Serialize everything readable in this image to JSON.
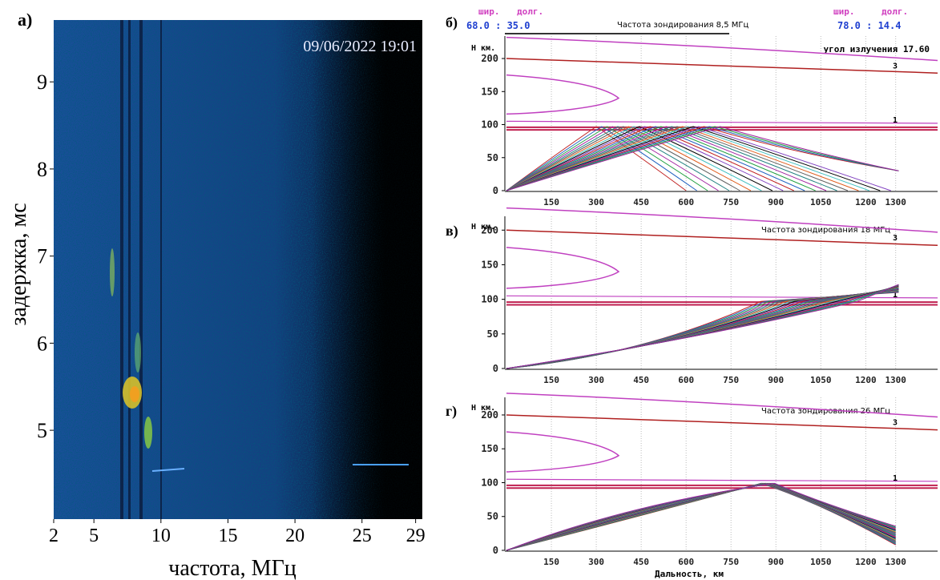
{
  "panel_a": {
    "label": "а)",
    "timestamp": "09/06/2022 19:01",
    "y_label": "задержка, мс",
    "x_label": "частота, МГц",
    "xlim": [
      2,
      29.5
    ],
    "ylim": [
      3.98,
      9.71
    ],
    "xticks": [
      2,
      5,
      10,
      15,
      20,
      25,
      29
    ],
    "yticks": [
      5,
      6,
      7,
      8,
      9
    ]
  },
  "header": {
    "lat_label_1": "шир.",
    "lon_label_1": "долг.",
    "coords_1": "68.0 :  35.0",
    "lat_label_2": "шир.",
    "lon_label_2": "долг.",
    "coords_2": "78.0 :  14.4"
  },
  "panels": [
    {
      "label": "б)",
      "y_unit": "Н км.",
      "title": "Частота зондирования 8,5 МГц",
      "note": "угол излучения 17.60",
      "layer_labels": [
        "3",
        "1"
      ],
      "xlim": [
        0,
        1440
      ],
      "ylim": [
        0,
        234
      ],
      "xticks": [
        150,
        300,
        450,
        600,
        750,
        900,
        1050,
        1200,
        1300
      ],
      "yticks": [
        0,
        50,
        100,
        150,
        200
      ]
    },
    {
      "label": "в)",
      "y_unit": "Н км.",
      "title": "Частота зондирования 18 МГц",
      "layer_labels": [
        "3",
        "1"
      ],
      "xlim": [
        0,
        1440
      ],
      "ylim": [
        0,
        220
      ],
      "xticks": [
        150,
        300,
        450,
        600,
        750,
        900,
        1050,
        1200,
        1300
      ],
      "yticks": [
        0,
        50,
        100,
        150,
        200
      ]
    },
    {
      "label": "г)",
      "y_unit": "Н км.",
      "title": "Частота зондирования 26 МГц",
      "layer_labels": [
        "3",
        "1"
      ],
      "xlim": [
        0,
        1440
      ],
      "ylim": [
        0,
        226
      ],
      "xticks": [
        150,
        300,
        450,
        600,
        750,
        900,
        1050,
        1200,
        1300
      ],
      "yticks": [
        0,
        50,
        100,
        150,
        200
      ]
    }
  ],
  "x_axis_label": "Дальность, км"
}
